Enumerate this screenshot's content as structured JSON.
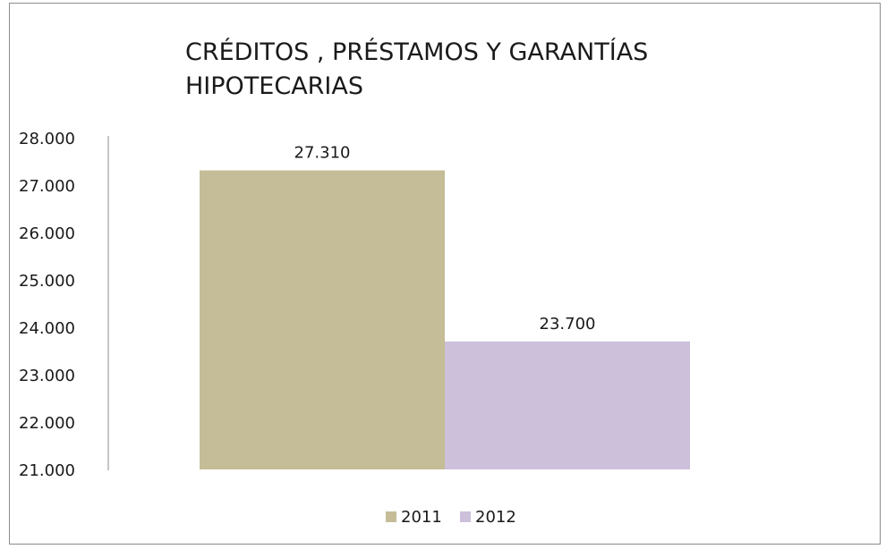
{
  "chart_data": {
    "type": "bar",
    "title": "CRÉDITOS , PRÉSTAMOS Y GARANTÍAS HIPOTECARIAS",
    "title_lines": [
      "CRÉDITOS , PRÉSTAMOS Y GARANTÍAS",
      "HIPOTECARIAS"
    ],
    "xlabel": "",
    "ylabel": "",
    "ylim": [
      21000,
      28000
    ],
    "yticks": [
      21000,
      22000,
      23000,
      24000,
      25000,
      26000,
      27000,
      28000
    ],
    "ytick_labels": [
      "21.000",
      "22.000",
      "23.000",
      "24.000",
      "25.000",
      "26.000",
      "27.000",
      "28.000"
    ],
    "grid": false,
    "legend_position": "bottom",
    "series": [
      {
        "name": "2011",
        "values": [
          27310
        ],
        "label": "27.310",
        "color": "#c4bd97"
      },
      {
        "name": "2012",
        "values": [
          23700
        ],
        "label": "23.700",
        "color": "#ccc0da"
      }
    ]
  }
}
